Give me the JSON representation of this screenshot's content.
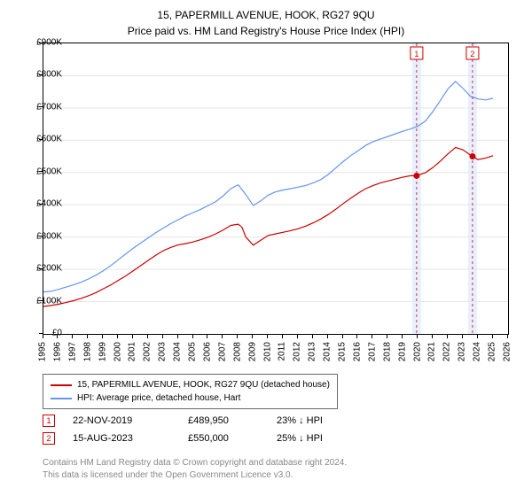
{
  "title_line1": "15, PAPERMILL AVENUE, HOOK, RG27 9QU",
  "title_line2": "Price paid vs. HM Land Registry's House Price Index (HPI)",
  "chart": {
    "type": "line",
    "background_color": "#ffffff",
    "border_color": "#000000",
    "grid_color": "#e6e6e6",
    "y": {
      "min": 0,
      "max": 900000,
      "step": 100000,
      "labels": [
        "£0",
        "£100K",
        "£200K",
        "£300K",
        "£400K",
        "£500K",
        "£600K",
        "£700K",
        "£800K",
        "£900K"
      ],
      "label_fontsize": 10
    },
    "x": {
      "min": 1995,
      "max": 2026,
      "step": 1,
      "labels": [
        "1995",
        "1996",
        "1997",
        "1998",
        "1999",
        "2000",
        "2001",
        "2002",
        "2003",
        "2004",
        "2005",
        "2006",
        "2007",
        "2008",
        "2009",
        "2010",
        "2011",
        "2012",
        "2013",
        "2014",
        "2015",
        "2016",
        "2017",
        "2018",
        "2019",
        "2020",
        "2021",
        "2022",
        "2023",
        "2024",
        "2025",
        "2026"
      ],
      "label_fontsize": 10,
      "label_rotation": -90
    },
    "series": [
      {
        "name": "price_paid",
        "label": "15, PAPERMILL AVENUE, HOOK, RG27 9QU (detached house)",
        "color": "#cc0000",
        "line_width": 1.2,
        "x": [
          1995,
          1995.5,
          1996,
          1996.5,
          1997,
          1997.5,
          1998,
          1998.5,
          1999,
          1999.5,
          2000,
          2000.5,
          2001,
          2001.5,
          2002,
          2002.5,
          2003,
          2003.5,
          2004,
          2004.5,
          2005,
          2005.5,
          2006,
          2006.5,
          2007,
          2007.5,
          2008,
          2008.25,
          2008.5,
          2009,
          2009.5,
          2010,
          2010.5,
          2011,
          2011.5,
          2012,
          2012.5,
          2013,
          2013.5,
          2014,
          2014.5,
          2015,
          2015.5,
          2016,
          2016.5,
          2017,
          2017.5,
          2018,
          2018.5,
          2019,
          2019.5,
          2019.9,
          2020,
          2020.5,
          2021,
          2021.5,
          2022,
          2022.5,
          2023,
          2023.5,
          2023.63,
          2024,
          2024.5,
          2025
        ],
        "y": [
          85000,
          88000,
          92000,
          97000,
          103000,
          110000,
          118000,
          128000,
          140000,
          152000,
          166000,
          180000,
          196000,
          212000,
          228000,
          244000,
          258000,
          268000,
          276000,
          280000,
          285000,
          292000,
          300000,
          310000,
          322000,
          336000,
          340000,
          330000,
          300000,
          275000,
          290000,
          305000,
          310000,
          315000,
          320000,
          326000,
          334000,
          344000,
          356000,
          370000,
          386000,
          404000,
          420000,
          436000,
          450000,
          460000,
          468000,
          474000,
          480000,
          486000,
          489950,
          489950,
          492000,
          500000,
          516000,
          536000,
          558000,
          578000,
          570000,
          554000,
          550000,
          540000,
          545000,
          552000
        ]
      },
      {
        "name": "hpi",
        "label": "HPI: Average price, detached house, Hart",
        "color": "#6495ed",
        "line_width": 1.2,
        "x": [
          1995,
          1995.5,
          1996,
          1996.5,
          1997,
          1997.5,
          1998,
          1998.5,
          1999,
          1999.5,
          2000,
          2000.5,
          2001,
          2001.5,
          2002,
          2002.5,
          2003,
          2003.5,
          2004,
          2004.5,
          2005,
          2005.5,
          2006,
          2006.5,
          2007,
          2007.5,
          2008,
          2008.5,
          2009,
          2009.5,
          2010,
          2010.5,
          2011,
          2011.5,
          2012,
          2012.5,
          2013,
          2013.5,
          2014,
          2014.5,
          2015,
          2015.5,
          2016,
          2016.5,
          2017,
          2017.5,
          2018,
          2018.5,
          2019,
          2019.5,
          2020,
          2020.5,
          2021,
          2021.5,
          2022,
          2022.5,
          2023,
          2023.5,
          2024,
          2024.5,
          2025
        ],
        "y": [
          130000,
          132000,
          138000,
          145000,
          152000,
          160000,
          170000,
          182000,
          196000,
          212000,
          230000,
          248000,
          266000,
          282000,
          298000,
          314000,
          328000,
          342000,
          354000,
          366000,
          376000,
          386000,
          398000,
          410000,
          428000,
          450000,
          462000,
          432000,
          398000,
          412000,
          430000,
          440000,
          446000,
          450000,
          455000,
          460000,
          468000,
          478000,
          494000,
          514000,
          534000,
          552000,
          568000,
          584000,
          596000,
          604000,
          612000,
          620000,
          628000,
          635000,
          644000,
          660000,
          690000,
          724000,
          760000,
          782000,
          760000,
          736000,
          728000,
          725000,
          730000
        ]
      }
    ],
    "sale_markers": [
      {
        "label": "1",
        "x": 2019.9,
        "y": 489950,
        "band_color": "#e8f0ff",
        "line_color": "#cc0000"
      },
      {
        "label": "2",
        "x": 2023.63,
        "y": 550000,
        "band_color": "#e8f0ff",
        "line_color": "#cc0000"
      }
    ]
  },
  "legend": {
    "border_color": "#696969",
    "fontsize": 10
  },
  "sales": [
    {
      "marker": "1",
      "date": "22-NOV-2019",
      "price": "£489,950",
      "delta": "23% ↓ HPI"
    },
    {
      "marker": "2",
      "date": "15-AUG-2023",
      "price": "£550,000",
      "delta": "25% ↓ HPI"
    }
  ],
  "footer_line1": "Contains HM Land Registry data © Crown copyright and database right 2024.",
  "footer_line2": "This data is licensed under the Open Government Licence v3.0."
}
